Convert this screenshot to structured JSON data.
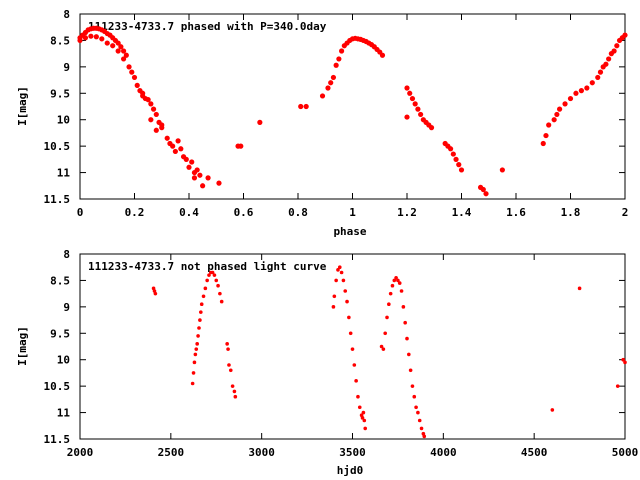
{
  "chart_data": [
    {
      "type": "scatter",
      "title": "111233-4733.7 phased with P=340.0day",
      "xlabel": "phase",
      "ylabel": "I[mag]",
      "xlim": [
        0,
        2
      ],
      "ylim": [
        11.5,
        8
      ],
      "y_inverted": true,
      "xticks": [
        0,
        0.2,
        0.4,
        0.6,
        0.8,
        1,
        1.2,
        1.4,
        1.6,
        1.8,
        2
      ],
      "yticks": [
        8,
        8.5,
        9,
        9.5,
        10,
        10.5,
        11,
        11.5
      ],
      "xtick_labels": [
        "0",
        "0.2",
        "0.4",
        "0.6",
        "0.8",
        "1",
        "1.2",
        "1.4",
        "1.6",
        "1.8",
        "2"
      ],
      "ytick_labels": [
        "8",
        "8.5",
        "9",
        "9.5",
        "10",
        "10.5",
        "11",
        "11.5"
      ],
      "grid": false,
      "marker_color": "#ff0000",
      "series": [
        {
          "x": [
            0.0,
            0.01,
            0.02,
            0.03,
            0.04,
            0.05,
            0.06,
            0.07,
            0.08,
            0.09,
            0.1,
            0.11,
            0.12,
            0.13,
            0.14,
            0.15,
            0.16,
            0.17,
            0.0,
            0.02,
            0.04,
            0.06,
            0.08,
            0.1,
            0.12,
            0.14,
            0.16,
            0.18,
            0.19,
            0.2,
            0.21,
            0.22,
            0.23,
            0.23,
            0.24,
            0.25,
            0.26,
            0.26,
            0.27,
            0.28,
            0.28,
            0.29,
            0.3,
            0.3,
            0.32,
            0.33,
            0.34,
            0.35,
            0.36,
            0.37,
            0.38,
            0.39,
            0.4,
            0.41,
            0.42,
            0.42,
            0.43,
            0.44,
            0.45,
            0.47,
            0.51,
            0.58,
            0.59,
            0.66,
            0.81,
            0.83,
            0.89,
            0.91,
            0.92,
            0.93,
            0.94,
            0.95,
            0.96,
            0.97,
            0.98,
            0.99,
            1.0,
            1.01,
            1.02,
            1.03,
            1.04,
            1.05,
            1.06,
            1.07,
            1.08,
            1.09,
            1.1,
            1.11,
            1.2,
            1.2,
            1.21,
            1.22,
            1.23,
            1.24,
            1.25,
            1.26,
            1.27,
            1.28,
            1.29,
            1.34,
            1.35,
            1.36,
            1.37,
            1.38,
            1.39,
            1.4,
            1.47,
            1.48,
            1.49,
            1.55,
            1.7,
            1.71,
            1.72,
            1.74,
            1.75,
            1.76,
            1.78,
            1.8,
            1.82,
            1.84,
            1.86,
            1.88,
            1.9,
            1.91,
            1.92,
            1.93,
            1.94,
            1.95,
            1.96,
            1.97,
            1.98,
            1.99,
            2.0
          ],
          "y": [
            8.45,
            8.4,
            8.35,
            8.3,
            8.28,
            8.27,
            8.27,
            8.28,
            8.3,
            8.33,
            8.37,
            8.4,
            8.45,
            8.5,
            8.55,
            8.62,
            8.7,
            8.78,
            8.5,
            8.45,
            8.42,
            8.43,
            8.47,
            8.55,
            8.6,
            8.7,
            8.85,
            9.0,
            9.1,
            9.2,
            9.35,
            9.45,
            9.55,
            9.5,
            9.6,
            9.62,
            9.7,
            10.0,
            9.8,
            9.9,
            10.2,
            10.05,
            10.1,
            10.15,
            10.35,
            10.45,
            10.5,
            10.6,
            10.4,
            10.55,
            10.7,
            10.75,
            10.9,
            10.8,
            11.0,
            11.1,
            10.95,
            11.05,
            11.25,
            11.1,
            11.2,
            10.5,
            10.5,
            10.05,
            9.75,
            9.75,
            9.55,
            9.4,
            9.3,
            9.2,
            8.97,
            8.85,
            8.7,
            8.6,
            8.55,
            8.5,
            8.47,
            8.46,
            8.47,
            8.48,
            8.5,
            8.52,
            8.55,
            8.58,
            8.62,
            8.67,
            8.72,
            8.78,
            9.95,
            9.4,
            9.5,
            9.6,
            9.7,
            9.8,
            9.9,
            10.0,
            10.05,
            10.1,
            10.15,
            10.45,
            10.5,
            10.55,
            10.65,
            10.75,
            10.85,
            10.95,
            11.28,
            11.32,
            11.4,
            10.95,
            10.45,
            10.3,
            10.1,
            10.0,
            9.9,
            9.8,
            9.7,
            9.6,
            9.5,
            9.45,
            9.4,
            9.3,
            9.2,
            9.1,
            9.0,
            8.95,
            8.85,
            8.75,
            8.7,
            8.6,
            8.5,
            8.45,
            8.4
          ]
        }
      ]
    },
    {
      "type": "scatter",
      "title": "111233-4733.7 not phased light curve",
      "xlabel": "hjd0",
      "ylabel": "I[mag]",
      "xlim": [
        2000,
        5000
      ],
      "ylim": [
        11.5,
        8
      ],
      "y_inverted": true,
      "xticks": [
        2000,
        2500,
        3000,
        3500,
        4000,
        4500,
        5000
      ],
      "yticks": [
        8,
        8.5,
        9,
        9.5,
        10,
        10.5,
        11,
        11.5
      ],
      "xtick_labels": [
        "2000",
        "2500",
        "3000",
        "3500",
        "4000",
        "4500",
        "5000"
      ],
      "ytick_labels": [
        "8",
        "8.5",
        "9",
        "9.5",
        "10",
        "10.5",
        "11",
        "11.5"
      ],
      "grid": false,
      "marker_color": "#ff0000",
      "series": [
        {
          "x": [
            2405,
            2410,
            2415,
            2620,
            2625,
            2630,
            2635,
            2640,
            2645,
            2650,
            2655,
            2660,
            2665,
            2670,
            2680,
            2690,
            2700,
            2710,
            2720,
            2730,
            2740,
            2750,
            2760,
            2770,
            2780,
            2810,
            2815,
            2820,
            2830,
            2840,
            2850,
            2855,
            3395,
            3400,
            3410,
            3420,
            3430,
            3440,
            3450,
            3460,
            3470,
            3480,
            3490,
            3500,
            3510,
            3520,
            3530,
            3540,
            3550,
            3555,
            3560,
            3565,
            3570,
            3660,
            3670,
            3680,
            3690,
            3700,
            3710,
            3720,
            3730,
            3740,
            3750,
            3760,
            3770,
            3780,
            3790,
            3800,
            3810,
            3820,
            3830,
            3840,
            3850,
            3860,
            3870,
            3880,
            3890,
            3895,
            4600,
            4750,
            4960,
            4990,
            5000
          ],
          "y": [
            8.65,
            8.7,
            8.75,
            10.45,
            10.25,
            10.05,
            9.9,
            9.8,
            9.7,
            9.55,
            9.4,
            9.25,
            9.1,
            8.95,
            8.8,
            8.65,
            8.5,
            8.4,
            8.35,
            8.35,
            8.4,
            8.5,
            8.6,
            8.75,
            8.9,
            9.7,
            9.8,
            10.1,
            10.2,
            10.5,
            10.6,
            10.7,
            9.0,
            8.8,
            8.5,
            8.3,
            8.25,
            8.35,
            8.5,
            8.7,
            8.9,
            9.2,
            9.5,
            9.8,
            10.1,
            10.4,
            10.7,
            10.9,
            11.05,
            11.1,
            11.0,
            11.15,
            11.3,
            9.75,
            9.8,
            9.5,
            9.2,
            8.95,
            8.75,
            8.6,
            8.5,
            8.45,
            8.5,
            8.55,
            8.7,
            9.0,
            9.3,
            9.6,
            9.9,
            10.2,
            10.5,
            10.7,
            10.9,
            11.0,
            11.15,
            11.3,
            11.4,
            11.45,
            10.95,
            8.65,
            10.5,
            10.0,
            10.05
          ]
        }
      ]
    }
  ]
}
